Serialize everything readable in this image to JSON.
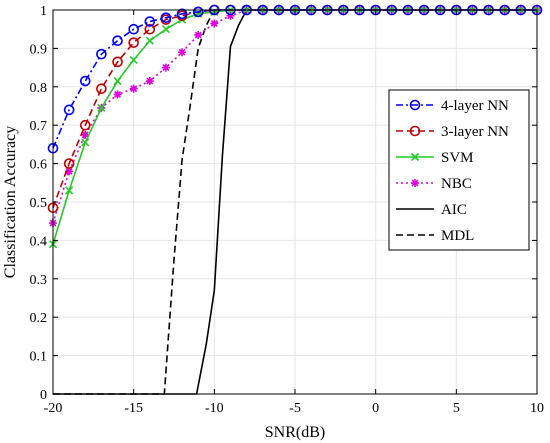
{
  "chart_data": {
    "type": "line",
    "title": "",
    "xlabel": "SNR(dB)",
    "ylabel": "Classification Accuracy",
    "xlim": [
      -20,
      10
    ],
    "ylim": [
      0,
      1
    ],
    "xticks": [
      -20,
      -15,
      -10,
      -5,
      0,
      5,
      10
    ],
    "yticks": [
      0,
      0.1,
      0.2,
      0.3,
      0.4,
      0.5,
      0.6,
      0.7,
      0.8,
      0.9,
      1
    ],
    "xtick_labels": [
      "-20",
      "-15",
      "-10",
      "-5",
      "0",
      "5",
      "10"
    ],
    "ytick_labels": [
      "0",
      "0.1",
      "0.2",
      "0.3",
      "0.4",
      "0.5",
      "0.6",
      "0.7",
      "0.8",
      "0.9",
      "1"
    ],
    "grid": true,
    "legend_position": "right",
    "series": [
      {
        "name": "4-layer NN",
        "color": "#0000ff",
        "line": "dashdot",
        "marker": "circle",
        "x": [
          -20,
          -19,
          -18,
          -17,
          -16,
          -15,
          -14,
          -13,
          -12,
          -11,
          -10,
          -9,
          -8,
          -7,
          -6,
          -5,
          -4,
          -3,
          -2,
          -1,
          0,
          1,
          2,
          3,
          4,
          5,
          6,
          7,
          8,
          9,
          10
        ],
        "y": [
          0.64,
          0.74,
          0.815,
          0.885,
          0.92,
          0.95,
          0.97,
          0.98,
          0.99,
          0.995,
          1,
          1,
          1,
          1,
          1,
          1,
          1,
          1,
          1,
          1,
          1,
          1,
          1,
          1,
          1,
          1,
          1,
          1,
          1,
          1,
          1
        ]
      },
      {
        "name": "3-layer NN",
        "color": "#c00000",
        "line": "dashed",
        "marker": "circle",
        "x": [
          -20,
          -19,
          -18,
          -17,
          -16,
          -15,
          -14,
          -13,
          -12,
          -11,
          -10,
          -9,
          -8,
          -7,
          -6,
          -5,
          -4,
          -3,
          -2,
          -1,
          0,
          1,
          2,
          3,
          4,
          5,
          6,
          7,
          8,
          9,
          10
        ],
        "y": [
          0.485,
          0.6,
          0.7,
          0.795,
          0.865,
          0.915,
          0.95,
          0.975,
          0.985,
          0.995,
          1,
          1,
          1,
          1,
          1,
          1,
          1,
          1,
          1,
          1,
          1,
          1,
          1,
          1,
          1,
          1,
          1,
          1,
          1,
          1,
          1
        ]
      },
      {
        "name": "SVM",
        "color": "#22cc22",
        "line": "solid",
        "marker": "x",
        "x": [
          -20,
          -19,
          -18,
          -17,
          -16,
          -15,
          -14,
          -13,
          -12,
          -11,
          -10,
          -9,
          -8,
          -7,
          -6,
          -5,
          -4,
          -3,
          -2,
          -1,
          0,
          1,
          2,
          3,
          4,
          5,
          6,
          7,
          8,
          9,
          10
        ],
        "y": [
          0.39,
          0.53,
          0.655,
          0.745,
          0.815,
          0.87,
          0.92,
          0.95,
          0.975,
          0.99,
          0.995,
          1,
          1,
          1,
          1,
          1,
          1,
          1,
          1,
          1,
          1,
          1,
          1,
          1,
          1,
          1,
          1,
          1,
          1,
          1,
          1
        ]
      },
      {
        "name": "NBC",
        "color": "#dd00dd",
        "line": "dotted",
        "marker": "star",
        "x": [
          -20,
          -19,
          -18,
          -17,
          -16,
          -15,
          -14,
          -13,
          -12,
          -11,
          -10,
          -9,
          -8,
          -7,
          -6,
          -5,
          -4,
          -3,
          -2,
          -1,
          0,
          1,
          2,
          3,
          4,
          5,
          6,
          7,
          8,
          9,
          10
        ],
        "y": [
          0.445,
          0.58,
          0.675,
          0.745,
          0.78,
          0.795,
          0.815,
          0.85,
          0.89,
          0.935,
          0.965,
          0.985,
          1,
          1,
          1,
          1,
          1,
          1,
          1,
          1,
          1,
          1,
          1,
          1,
          1,
          1,
          1,
          1,
          1,
          1,
          1
        ]
      },
      {
        "name": "AIC",
        "color": "#000000",
        "line": "solid",
        "marker": "none",
        "x": [
          -20,
          -11.1,
          -10.5,
          -10,
          -9.5,
          -9,
          -8.5,
          -8,
          10
        ],
        "y": [
          0,
          0,
          0.13,
          0.27,
          0.62,
          0.905,
          0.96,
          1,
          1
        ]
      },
      {
        "name": "MDL",
        "color": "#000000",
        "line": "dashed",
        "marker": "none",
        "x": [
          -20,
          -13.1,
          -12.5,
          -12,
          -11.5,
          -11,
          -10.5,
          -10,
          10
        ],
        "y": [
          0,
          0,
          0.35,
          0.61,
          0.75,
          0.9,
          0.96,
          1,
          1
        ]
      }
    ]
  }
}
